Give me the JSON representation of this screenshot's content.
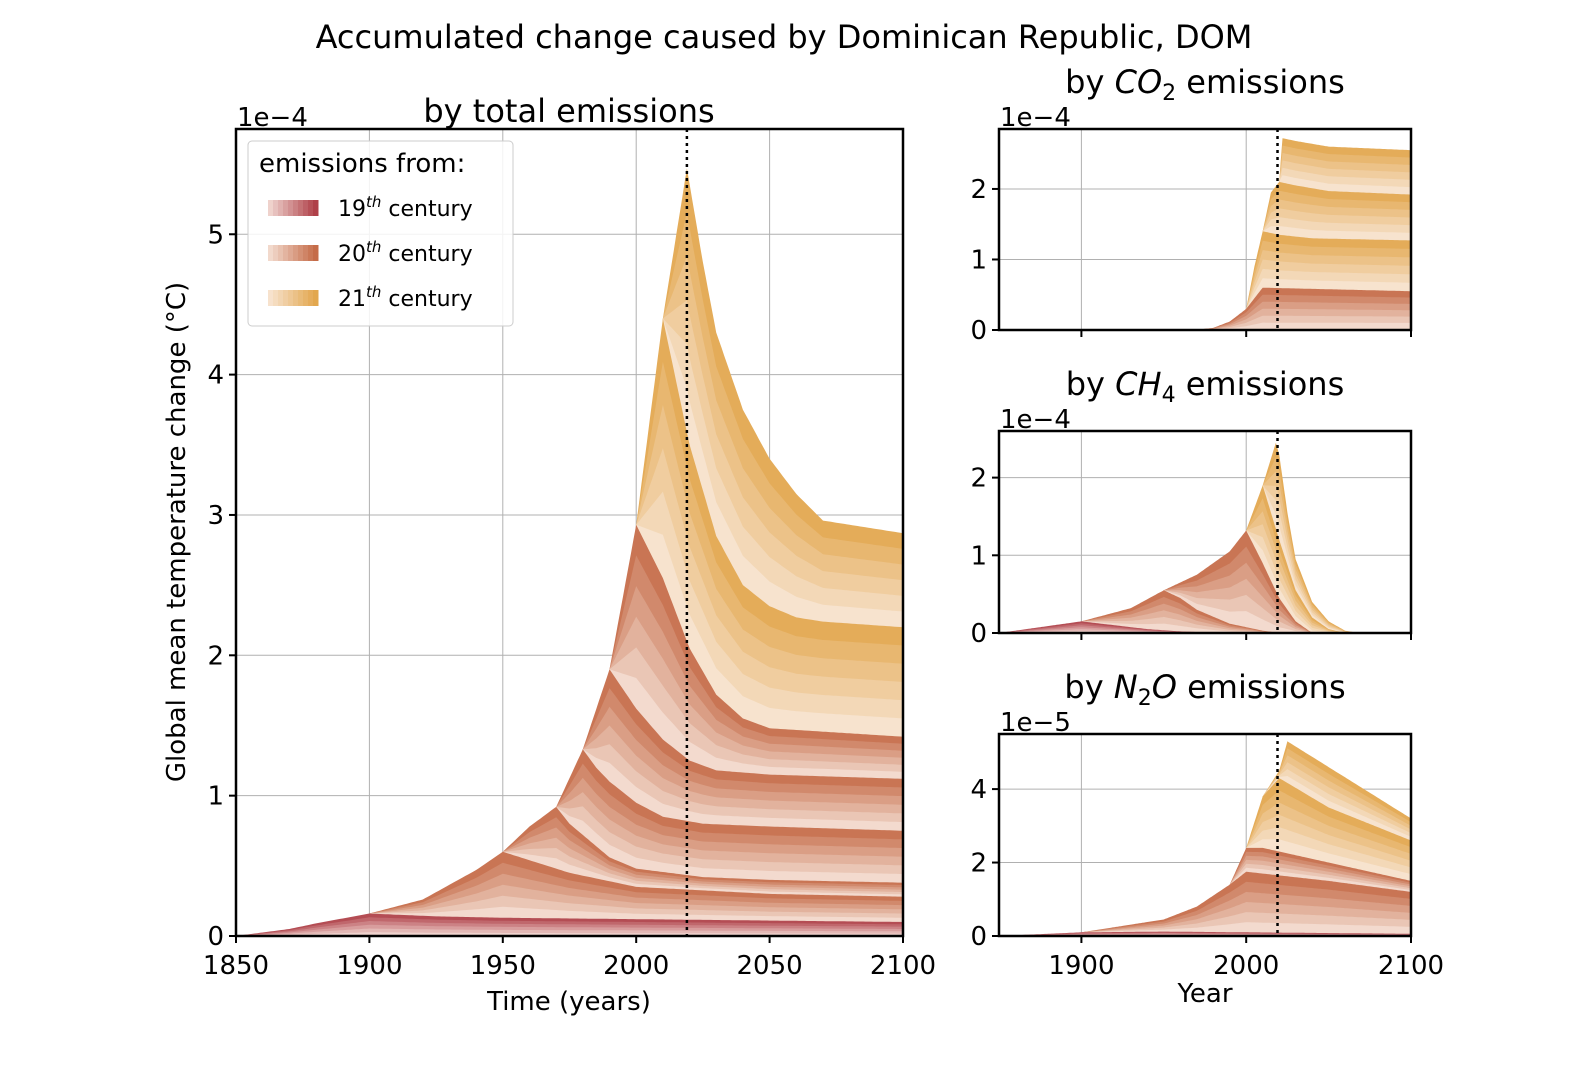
{
  "figure": {
    "suptitle": "Accumulated change caused by Dominican Republic, DOM",
    "colors": {
      "c19": "#a8303a",
      "c20": "#c0603a",
      "c21": "#e0a040",
      "pale": "#fbeee6",
      "grid": "#b0b0b0"
    }
  },
  "chart_data": [
    {
      "id": "total",
      "type": "area",
      "title": "by total emissions",
      "xlabel": "Time (years)",
      "ylabel": "Global mean temperature change (°C)",
      "offset_text": "1e−4",
      "xlim": [
        1850,
        2100
      ],
      "ylim": [
        0,
        5.75
      ],
      "xticks": [
        1850,
        1900,
        1950,
        2000,
        2050,
        2100
      ],
      "yticks": [
        0,
        1,
        2,
        3,
        4,
        5
      ],
      "vline": 2019,
      "legend": {
        "title": "emissions from:",
        "entries": [
          {
            "base": "19",
            "sup": "th",
            "rest": " century",
            "color": "c19"
          },
          {
            "base": "20",
            "sup": "th",
            "rest": " century",
            "color": "c20"
          },
          {
            "base": "21",
            "sup": "th",
            "rest": " century",
            "color": "c21"
          }
        ]
      },
      "envelopes": [
        {
          "decade_start": 1850,
          "x": [
            1850,
            1870,
            1880,
            1900,
            1925,
            1950,
            2000,
            2050,
            2100
          ],
          "y": [
            0,
            0.05,
            0.09,
            0.16,
            0.14,
            0.13,
            0.12,
            0.11,
            0.1
          ]
        },
        {
          "decade_start": 1900,
          "x": [
            1900,
            1920,
            1940,
            1950,
            1975,
            2000,
            2050,
            2100
          ],
          "y": [
            0.16,
            0.26,
            0.47,
            0.6,
            0.45,
            0.35,
            0.3,
            0.28
          ]
        },
        {
          "decade_start": 1950,
          "x": [
            1950,
            1960,
            1970,
            1975,
            1990,
            2000,
            2025,
            2050,
            2100
          ],
          "y": [
            0.6,
            0.78,
            0.92,
            0.8,
            0.56,
            0.48,
            0.42,
            0.4,
            0.38
          ]
        },
        {
          "decade_start": 1970,
          "x": [
            1970,
            1980,
            1985,
            1990,
            2000,
            2010,
            2025,
            2050,
            2100
          ],
          "y": [
            0.92,
            1.33,
            1.2,
            1.1,
            0.95,
            0.85,
            0.8,
            0.78,
            0.75
          ]
        },
        {
          "decade_start": 1980,
          "x": [
            1980,
            1990,
            2000,
            2010,
            2020,
            2030,
            2050,
            2100
          ],
          "y": [
            1.33,
            1.9,
            1.62,
            1.4,
            1.25,
            1.18,
            1.15,
            1.12
          ]
        },
        {
          "decade_start": 1990,
          "x": [
            1990,
            2000,
            2010,
            2020,
            2030,
            2040,
            2050,
            2100
          ],
          "y": [
            1.9,
            2.93,
            2.55,
            2.05,
            1.72,
            1.55,
            1.48,
            1.42
          ]
        },
        {
          "decade_start": 2000,
          "x": [
            2000,
            2010,
            2020,
            2030,
            2040,
            2050,
            2060,
            2070,
            2100
          ],
          "y": [
            2.93,
            4.4,
            3.5,
            2.85,
            2.5,
            2.35,
            2.27,
            2.24,
            2.2
          ]
        },
        {
          "decade_start": 2010,
          "x": [
            2010,
            2019,
            2025,
            2030,
            2040,
            2050,
            2060,
            2070,
            2100
          ],
          "y": [
            4.4,
            5.47,
            4.8,
            4.3,
            3.75,
            3.4,
            3.15,
            2.96,
            2.87
          ]
        }
      ]
    },
    {
      "id": "co2",
      "type": "area",
      "title_pre": "by ",
      "title_species": "CO",
      "title_sub": "2",
      "title_post": " emissions",
      "offset_text": "1e−4",
      "xlim": [
        1850,
        2100
      ],
      "ylim": [
        0,
        2.85
      ],
      "xticks": [
        1900,
        2000,
        2100
      ],
      "yticks": [
        0,
        1,
        2
      ],
      "vline": 2019,
      "envelopes": [
        {
          "decade_start": 1850,
          "x": [
            1850,
            1950,
            1970,
            2100
          ],
          "y": [
            0,
            0,
            0.003,
            0.01
          ]
        },
        {
          "decade_start": 1970,
          "x": [
            1970,
            1980,
            1990,
            2000,
            2010,
            2100
          ],
          "y": [
            0.003,
            0.03,
            0.12,
            0.3,
            0.6,
            0.55
          ]
        },
        {
          "decade_start": 2000,
          "x": [
            2000,
            2005,
            2010,
            2020,
            2040,
            2100
          ],
          "y": [
            0.3,
            0.9,
            1.4,
            1.35,
            1.3,
            1.27
          ]
        },
        {
          "decade_start": 2010,
          "x": [
            2010,
            2015,
            2020,
            2030,
            2050,
            2100
          ],
          "y": [
            1.4,
            1.95,
            2.1,
            2.05,
            1.97,
            1.92
          ]
        },
        {
          "decade_start": 2020,
          "x": [
            2020,
            2022,
            2030,
            2050,
            2100
          ],
          "y": [
            2.1,
            2.72,
            2.68,
            2.6,
            2.55
          ]
        }
      ]
    },
    {
      "id": "ch4",
      "type": "area",
      "title_pre": "by ",
      "title_species": "CH",
      "title_sub": "4",
      "title_post": " emissions",
      "offset_text": "1e−4",
      "xlim": [
        1850,
        2100
      ],
      "ylim": [
        0,
        2.6
      ],
      "xticks": [
        1900,
        2000,
        2100
      ],
      "yticks": [
        0,
        1,
        2
      ],
      "vline": 2019,
      "envelopes": [
        {
          "decade_start": 1850,
          "x": [
            1850,
            1900,
            1920,
            1940,
            1960,
            1980,
            1990
          ],
          "y": [
            0,
            0.15,
            0.1,
            0.05,
            0.02,
            0.005,
            0
          ]
        },
        {
          "decade_start": 1900,
          "x": [
            1900,
            1930,
            1950,
            1960,
            1970,
            1990,
            2010,
            2020
          ],
          "y": [
            0.15,
            0.32,
            0.55,
            0.45,
            0.3,
            0.12,
            0.03,
            0
          ]
        },
        {
          "decade_start": 1950,
          "x": [
            1950,
            1970,
            1990,
            2000,
            2010,
            2020,
            2030,
            2040
          ],
          "y": [
            0.55,
            0.75,
            1.05,
            1.32,
            0.9,
            0.45,
            0.15,
            0
          ]
        },
        {
          "decade_start": 2000,
          "x": [
            2000,
            2010,
            2020,
            2030,
            2040,
            2050,
            2060
          ],
          "y": [
            1.32,
            1.9,
            1.2,
            0.55,
            0.2,
            0.05,
            0
          ]
        },
        {
          "decade_start": 2010,
          "x": [
            2010,
            2018,
            2020,
            2025,
            2030,
            2040,
            2050,
            2060,
            2068
          ],
          "y": [
            1.9,
            2.45,
            2.3,
            1.55,
            0.95,
            0.4,
            0.15,
            0.03,
            0
          ]
        }
      ]
    },
    {
      "id": "n2o",
      "type": "area",
      "title_pre": "by ",
      "title_species": "N",
      "title_sub": "2",
      "title_species_post": "O",
      "title_post": " emissions",
      "offset_text": "1e−5",
      "xlim": [
        1850,
        2100
      ],
      "ylim": [
        0,
        5.5
      ],
      "xticks": [
        1900,
        2000,
        2100
      ],
      "yticks": [
        0,
        2,
        4
      ],
      "xlabel": "Year",
      "vline": 2019,
      "envelopes": [
        {
          "decade_start": 1850,
          "x": [
            1850,
            1900,
            1950,
            2000,
            2100
          ],
          "y": [
            0,
            0.1,
            0.12,
            0.1,
            0.06
          ]
        },
        {
          "decade_start": 1900,
          "x": [
            1900,
            1950,
            1970,
            1990,
            2000,
            2050,
            2100
          ],
          "y": [
            0.1,
            0.45,
            0.8,
            1.4,
            1.75,
            1.5,
            1.2
          ]
        },
        {
          "decade_start": 1990,
          "x": [
            1990,
            2000,
            2010,
            2050,
            2100
          ],
          "y": [
            1.4,
            2.4,
            2.4,
            2.0,
            1.5
          ]
        },
        {
          "decade_start": 2000,
          "x": [
            2000,
            2010,
            2020,
            2050,
            2100
          ],
          "y": [
            2.4,
            3.8,
            4.3,
            3.5,
            2.6
          ]
        },
        {
          "decade_start": 2010,
          "x": [
            2010,
            2020,
            2025,
            2050,
            2100
          ],
          "y": [
            3.8,
            4.5,
            5.3,
            4.6,
            3.2
          ]
        }
      ]
    }
  ]
}
